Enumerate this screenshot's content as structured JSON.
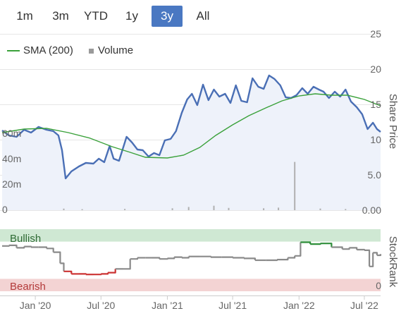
{
  "range_selector": {
    "buttons": [
      {
        "label": "1m",
        "active": false
      },
      {
        "label": "3m",
        "active": false
      },
      {
        "label": "YTD",
        "active": false
      },
      {
        "label": "1y",
        "active": false
      },
      {
        "label": "3y",
        "active": true
      },
      {
        "label": "All",
        "active": false
      }
    ]
  },
  "legend": {
    "sma_label": "SMA (200)",
    "volume_label": "Volume"
  },
  "colors": {
    "price": "#4a6fb5",
    "price_fill": "#eef2fa",
    "sma": "#3aa13a",
    "volume": "#b0b0b0",
    "bullish_band": "#cfe8d3",
    "bearish_band": "#f3d3d3",
    "stockrank_line": "#8a8a8a",
    "stockrank_bull": "#2f8f3a",
    "stockrank_bear": "#cc3333",
    "active_button": "#4a78c2"
  },
  "chart_data": [
    {
      "type": "line",
      "ylabel": "Share Price",
      "ylim": [
        0,
        25
      ],
      "y_ticks": [
        "0.00",
        "5.0",
        "10",
        "15",
        "20",
        "25"
      ],
      "x_ticks": [
        "Jan '20",
        "Jul '20",
        "Jan '21",
        "Jul '21",
        "Jan '22",
        "Jul '22"
      ],
      "series": [
        {
          "name": "Share Price",
          "x": [
            "2019-10-01",
            "2019-10-20",
            "2019-11-10",
            "2019-12-01",
            "2019-12-20",
            "2020-01-10",
            "2020-02-01",
            "2020-02-20",
            "2020-03-05",
            "2020-03-15",
            "2020-03-25",
            "2020-04-10",
            "2020-05-01",
            "2020-05-20",
            "2020-06-10",
            "2020-06-25",
            "2020-07-10",
            "2020-07-25",
            "2020-08-05",
            "2020-08-20",
            "2020-09-10",
            "2020-09-25",
            "2020-10-10",
            "2020-10-25",
            "2020-11-10",
            "2020-11-25",
            "2020-12-10",
            "2020-12-25",
            "2021-01-10",
            "2021-01-25",
            "2021-02-10",
            "2021-02-25",
            "2021-03-10",
            "2021-03-25",
            "2021-04-10",
            "2021-04-25",
            "2021-05-10",
            "2021-05-25",
            "2021-06-10",
            "2021-06-25",
            "2021-07-10",
            "2021-07-25",
            "2021-08-10",
            "2021-08-25",
            "2021-09-10",
            "2021-09-25",
            "2021-10-10",
            "2021-10-25",
            "2021-11-10",
            "2021-11-25",
            "2021-12-10",
            "2021-12-25",
            "2022-01-10",
            "2022-01-25",
            "2022-02-10",
            "2022-02-25",
            "2022-03-10",
            "2022-03-25",
            "2022-04-10",
            "2022-04-25",
            "2022-05-10",
            "2022-05-25",
            "2022-06-10",
            "2022-06-25",
            "2022-07-10",
            "2022-07-25",
            "2022-08-05",
            "2022-08-15"
          ],
          "values": [
            11.3,
            10.6,
            10.4,
            11.4,
            11.0,
            11.8,
            11.4,
            11.2,
            10.6,
            8.5,
            4.5,
            5.5,
            6.2,
            6.7,
            6.6,
            7.3,
            6.8,
            9.1,
            7.3,
            7.0,
            10.4,
            9.6,
            8.6,
            8.5,
            7.6,
            8.1,
            7.8,
            9.9,
            10.1,
            11.2,
            13.8,
            15.7,
            16.5,
            14.9,
            17.8,
            15.6,
            17.1,
            16.1,
            16.5,
            15.2,
            17.7,
            15.5,
            15.3,
            18.7,
            17.5,
            17.2,
            19.1,
            18.6,
            17.7,
            16.0,
            15.9,
            16.3,
            17.3,
            16.5,
            17.5,
            17.1,
            16.8,
            15.9,
            16.8,
            16.1,
            17.1,
            15.4,
            14.6,
            13.6,
            11.5,
            12.4,
            11.5,
            11.1
          ]
        },
        {
          "name": "SMA (200)",
          "x": [
            "2019-10-01",
            "2019-12-01",
            "2020-02-01",
            "2020-04-01",
            "2020-06-01",
            "2020-08-01",
            "2020-09-20",
            "2020-11-01",
            "2021-01-01",
            "2021-02-15",
            "2021-04-01",
            "2021-05-15",
            "2021-07-01",
            "2021-08-15",
            "2021-10-01",
            "2021-11-15",
            "2022-01-01",
            "2022-02-15",
            "2022-04-01",
            "2022-05-15",
            "2022-07-01",
            "2022-08-15"
          ],
          "values": [
            11.0,
            11.5,
            11.6,
            11.0,
            10.2,
            9.0,
            8.2,
            7.5,
            7.4,
            7.8,
            8.9,
            10.6,
            12.1,
            13.4,
            14.5,
            15.5,
            16.2,
            16.5,
            16.3,
            16.3,
            15.7,
            14.8
          ]
        }
      ]
    },
    {
      "type": "bar",
      "name": "Volume",
      "ylim": [
        0,
        60
      ],
      "y_ticks": [
        "0",
        "20m",
        "40m",
        "60m"
      ],
      "x": [
        "2020-03-20",
        "2020-05-10",
        "2020-09-05",
        "2021-01-15",
        "2021-03-01",
        "2021-05-10",
        "2021-06-20",
        "2021-09-25",
        "2021-11-05",
        "2021-12-20",
        "2022-03-01",
        "2022-05-10"
      ],
      "values": [
        1.2,
        0.8,
        1.0,
        1.5,
        2.5,
        3.5,
        1.8,
        1.5,
        2.0,
        38.0,
        1.3,
        0.9
      ]
    },
    {
      "type": "line",
      "ylabel": "StockRank",
      "ylim": [
        0,
        100
      ],
      "zones": [
        {
          "label": "Bullish",
          "from": 80,
          "to": 100
        },
        {
          "label": "Bearish",
          "from": 0,
          "to": 20
        }
      ],
      "y_ticks": [
        "0"
      ],
      "series": [
        {
          "name": "StockRank",
          "x": [
            "2019-10-01",
            "2019-10-20",
            "2019-11-10",
            "2019-12-01",
            "2019-12-20",
            "2020-01-10",
            "2020-02-01",
            "2020-02-20",
            "2020-03-10",
            "2020-03-20",
            "2020-04-10",
            "2020-05-01",
            "2020-05-20",
            "2020-06-10",
            "2020-07-01",
            "2020-07-20",
            "2020-08-10",
            "2020-09-01",
            "2020-09-20",
            "2020-10-10",
            "2020-11-01",
            "2020-11-20",
            "2020-12-10",
            "2021-01-01",
            "2021-01-20",
            "2021-02-10",
            "2021-03-01",
            "2021-04-01",
            "2021-05-01",
            "2021-06-01",
            "2021-07-01",
            "2021-08-01",
            "2021-09-01",
            "2021-10-01",
            "2021-11-01",
            "2021-12-01",
            "2021-12-20",
            "2022-01-05",
            "2022-02-01",
            "2022-03-01",
            "2022-04-01",
            "2022-05-01",
            "2022-05-20",
            "2022-06-10",
            "2022-07-01",
            "2022-07-15",
            "2022-07-25",
            "2022-08-05",
            "2022-08-15"
          ],
          "values": [
            73,
            74,
            70,
            72,
            71,
            71,
            69,
            63,
            45,
            32,
            28,
            28,
            27,
            27,
            28,
            30,
            36,
            36,
            52,
            54,
            54,
            54,
            52,
            53,
            55,
            54,
            56,
            56,
            55,
            55,
            54,
            53,
            50,
            50,
            51,
            54,
            57,
            79,
            76,
            77,
            71,
            68,
            70,
            67,
            66,
            40,
            62,
            58,
            60
          ]
        }
      ]
    }
  ]
}
